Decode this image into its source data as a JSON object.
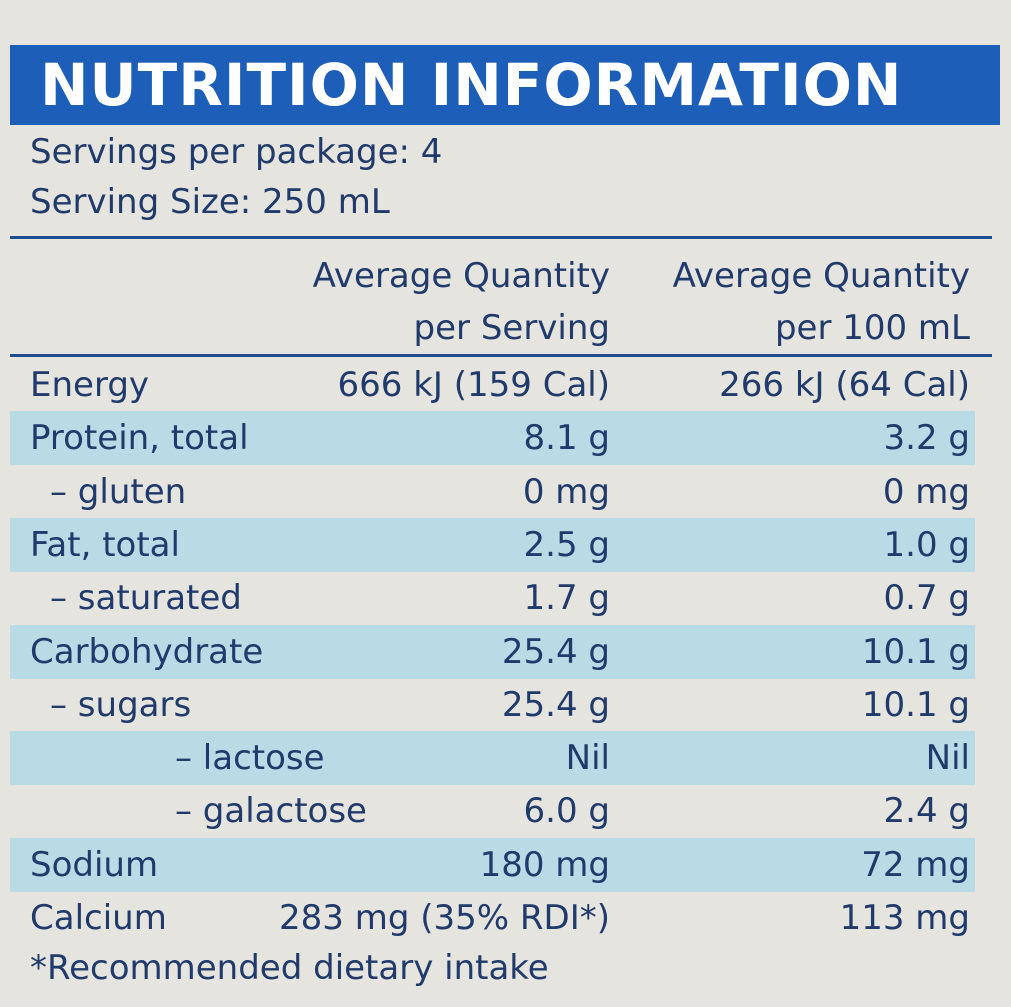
{
  "header": {
    "title": "NUTRITION INFORMATION",
    "servings": "Servings per package: 4",
    "serving_size": "Serving Size: 250 mL"
  },
  "table": {
    "columns": [
      "Average Quantity per Serving",
      "Average Quantity per 100 mL"
    ],
    "rows": [
      [
        "Energy",
        "666 kJ (159 Cal)",
        "266 kJ (64 Cal)"
      ],
      [
        "Protein, total",
        "8.1 g",
        "3.2 g"
      ],
      [
        "– gluten",
        "0 mg",
        "0 mg"
      ],
      [
        "Fat, total",
        "2.5 g",
        "1.0 g"
      ],
      [
        "– saturated",
        "1.7 g",
        "0.7 g"
      ],
      [
        "Carbohydrate",
        "25.4 g",
        "10.1 g"
      ],
      [
        "– sugars",
        "25.4 g",
        "10.1 g"
      ],
      [
        "– lactose",
        "Nil",
        "Nil"
      ],
      [
        "– galactose",
        "6.0 g",
        "2.4 g"
      ],
      [
        "Sodium",
        "180 mg",
        "72 mg"
      ],
      [
        "Calcium",
        "283 mg (35% RDI*)",
        "113 mg"
      ]
    ]
  },
  "footnote": "*Recommended dietary intake"
}
